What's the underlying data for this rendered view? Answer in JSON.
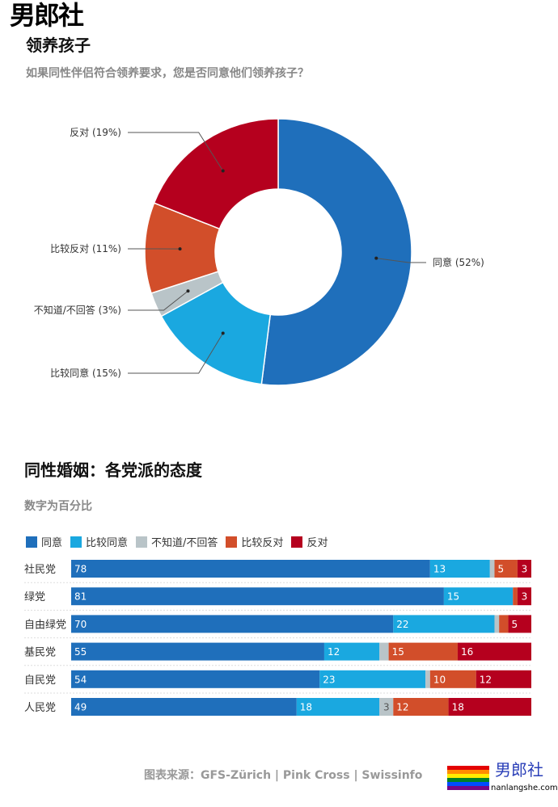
{
  "watermark": "男郎社",
  "chart_data": [
    {
      "type": "pie",
      "title": "领养孩子",
      "subtitle": "如果同性伴侣符合领养要求，您是否同意他们领养孩子？",
      "slices": [
        {
          "label": "同意 (52%)",
          "value": 52,
          "color": "#1f6fbb"
        },
        {
          "label": "比较同意 (15%)",
          "value": 15,
          "color": "#1aa8e0"
        },
        {
          "label": "不知道/不回答 (3%)",
          "value": 3,
          "color": "#b9c4c8"
        },
        {
          "label": "比较反对 (11%)",
          "value": 11,
          "color": "#d24e2a"
        },
        {
          "label": "反对 (19%)",
          "value": 19,
          "color": "#b5001e"
        }
      ]
    },
    {
      "type": "bar",
      "stacked": true,
      "orientation": "horizontal",
      "title": "同性婚姻：各党派的态度",
      "subtitle": "数字为百分比",
      "legend": "top",
      "categories": [
        "社民党",
        "绿党",
        "自由绿党",
        "基民党",
        "自民党",
        "人民党"
      ],
      "series": [
        {
          "name": "同意",
          "color": "#1f6fbb",
          "values": [
            78,
            81,
            70,
            55,
            54,
            49
          ]
        },
        {
          "name": "比较同意",
          "color": "#1aa8e0",
          "values": [
            13,
            15,
            22,
            12,
            23,
            18
          ]
        },
        {
          "name": "不知道/不回答",
          "color": "#b9c4c8",
          "values": [
            1,
            0,
            1,
            2,
            1,
            3
          ]
        },
        {
          "name": "比较反对",
          "color": "#d24e2a",
          "values": [
            5,
            1,
            2,
            15,
            10,
            12
          ]
        },
        {
          "name": "反对",
          "color": "#b5001e",
          "values": [
            3,
            3,
            5,
            16,
            12,
            18
          ]
        }
      ],
      "labeled": [
        [
          true,
          true,
          false,
          true,
          true
        ],
        [
          true,
          true,
          false,
          false,
          true
        ],
        [
          true,
          true,
          false,
          false,
          true
        ],
        [
          true,
          true,
          false,
          true,
          true
        ],
        [
          true,
          true,
          false,
          true,
          true
        ],
        [
          true,
          true,
          true,
          true,
          true
        ]
      ]
    }
  ],
  "footer": "图表来源：GFS-Zürich | Pink Cross | Swissinfo",
  "logo": {
    "text": "男郎社",
    "url": "nanlangshe.com"
  }
}
